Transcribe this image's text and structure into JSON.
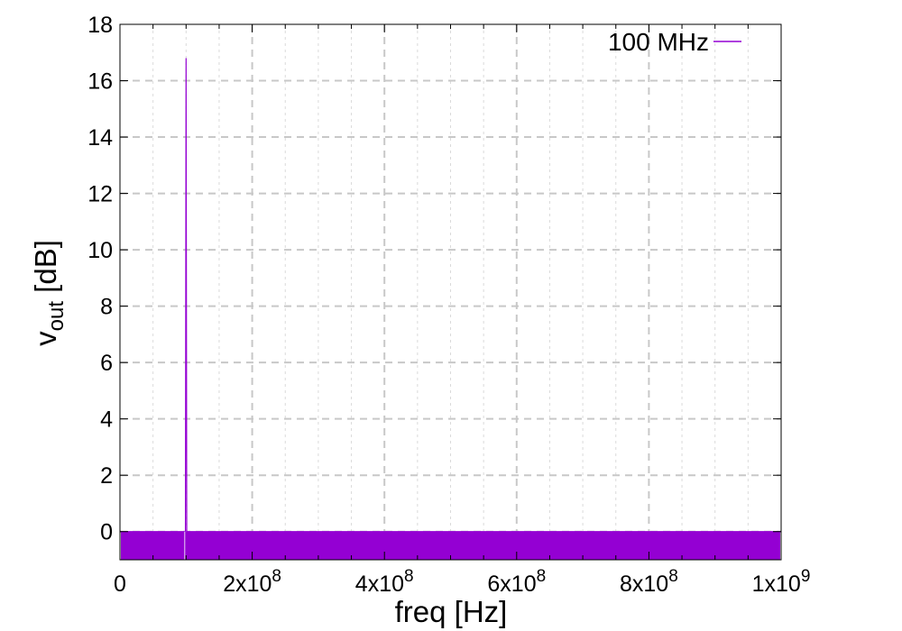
{
  "chart_data": {
    "type": "line",
    "title": "",
    "xlabel": "freq [Hz]",
    "ylabel": {
      "main": "v",
      "sub": "out",
      "unit": " [dB]"
    },
    "xlim": [
      0,
      1000000000
    ],
    "ylim": [
      -1,
      18
    ],
    "grid": true,
    "legend_position": "top-right",
    "x_ticks": [
      {
        "value": 0,
        "mant": "0",
        "exp": ""
      },
      {
        "value": 200000000,
        "mant": "2x10",
        "exp": "8"
      },
      {
        "value": 400000000,
        "mant": "4x10",
        "exp": "8"
      },
      {
        "value": 600000000,
        "mant": "6x10",
        "exp": "8"
      },
      {
        "value": 800000000,
        "mant": "8x10",
        "exp": "8"
      },
      {
        "value": 1000000000,
        "mant": "1x10",
        "exp": "9"
      }
    ],
    "y_ticks": [
      {
        "value": 0,
        "label": "0"
      },
      {
        "value": 2,
        "label": "2"
      },
      {
        "value": 4,
        "label": "4"
      },
      {
        "value": 6,
        "label": "6"
      },
      {
        "value": 8,
        "label": "8"
      },
      {
        "value": 10,
        "label": "10"
      },
      {
        "value": 12,
        "label": "12"
      },
      {
        "value": 14,
        "label": "14"
      },
      {
        "value": 16,
        "label": "16"
      },
      {
        "value": 18,
        "label": "18"
      }
    ],
    "series": [
      {
        "name": "100 MHz",
        "color": "#9400d3",
        "noise_floor": [
          -1,
          0
        ],
        "points": [
          [
            0,
            0
          ],
          [
            99000000,
            0
          ],
          [
            100000000,
            16.8
          ],
          [
            101000000,
            0
          ],
          [
            1000000000,
            0
          ]
        ]
      }
    ]
  }
}
